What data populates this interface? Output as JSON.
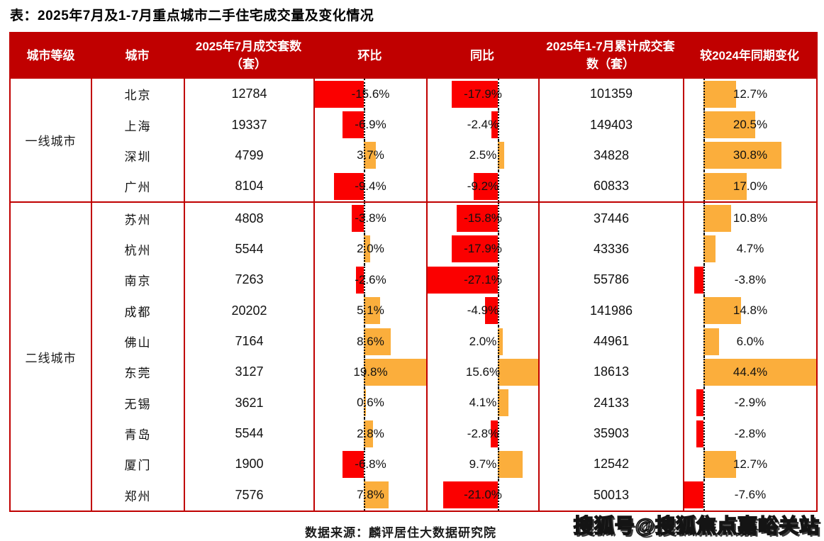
{
  "title": "表：2025年7月及1-7月重点城市二手住宅成交量及变化情况",
  "source_note": "数据来源：麟评居住大数据研究院",
  "watermark": "搜狐号@搜狐焦点嘉峪关站",
  "colors": {
    "header_bg": "#c00000",
    "table_border": "#c00000",
    "bar_negative": "#fb0000",
    "bar_positive": "#fbae3c"
  },
  "chart_data": {
    "type": "table",
    "title": "2025年7月及1-7月重点城市二手住宅成交量及变化情况",
    "columns": [
      "城市等级",
      "城市",
      "2025年7月成交套数（套）",
      "环比",
      "同比",
      "2025年1-7月累计成交套数（套）",
      "较2024年同期变化"
    ],
    "bar_style": "excel-data-bars, red negative / orange positive, dotted zero axis per column",
    "groups": [
      {
        "tier": "一线城市",
        "rows": [
          {
            "city": "北京",
            "july_units": 12784,
            "mom_pct": -15.6,
            "yoy_pct": -17.9,
            "cum_units": 101359,
            "cum_change_pct": 12.7
          },
          {
            "city": "上海",
            "july_units": 19337,
            "mom_pct": -6.9,
            "yoy_pct": -2.4,
            "cum_units": 149403,
            "cum_change_pct": 20.5
          },
          {
            "city": "深圳",
            "july_units": 4799,
            "mom_pct": 3.7,
            "yoy_pct": 2.5,
            "cum_units": 34828,
            "cum_change_pct": 30.8
          },
          {
            "city": "广州",
            "july_units": 8104,
            "mom_pct": -9.4,
            "yoy_pct": -9.2,
            "cum_units": 60833,
            "cum_change_pct": 17.0
          }
        ]
      },
      {
        "tier": "二线城市",
        "rows": [
          {
            "city": "苏州",
            "july_units": 4808,
            "mom_pct": -3.8,
            "yoy_pct": -15.8,
            "cum_units": 37446,
            "cum_change_pct": 10.8
          },
          {
            "city": "杭州",
            "july_units": 5544,
            "mom_pct": 2.0,
            "yoy_pct": -17.9,
            "cum_units": 43336,
            "cum_change_pct": 4.7
          },
          {
            "city": "南京",
            "july_units": 7263,
            "mom_pct": -2.6,
            "yoy_pct": -27.1,
            "cum_units": 55786,
            "cum_change_pct": -3.8
          },
          {
            "city": "成都",
            "july_units": 20202,
            "mom_pct": 5.1,
            "yoy_pct": -4.9,
            "cum_units": 141986,
            "cum_change_pct": 14.8
          },
          {
            "city": "佛山",
            "july_units": 7164,
            "mom_pct": 8.6,
            "yoy_pct": 2.0,
            "cum_units": 44961,
            "cum_change_pct": 6.0
          },
          {
            "city": "东莞",
            "july_units": 3127,
            "mom_pct": 19.8,
            "yoy_pct": 15.6,
            "cum_units": 18613,
            "cum_change_pct": 44.4
          },
          {
            "city": "无锡",
            "july_units": 3621,
            "mom_pct": 0.6,
            "yoy_pct": 4.1,
            "cum_units": 24133,
            "cum_change_pct": -2.9
          },
          {
            "city": "青岛",
            "july_units": 5544,
            "mom_pct": 2.8,
            "yoy_pct": -2.8,
            "cum_units": 35903,
            "cum_change_pct": -2.8
          },
          {
            "city": "厦门",
            "july_units": 1900,
            "mom_pct": -6.8,
            "yoy_pct": 9.7,
            "cum_units": 12542,
            "cum_change_pct": 12.7
          },
          {
            "city": "郑州",
            "july_units": 7576,
            "mom_pct": 7.8,
            "yoy_pct": -21.0,
            "cum_units": 50013,
            "cum_change_pct": -7.6
          }
        ]
      }
    ]
  }
}
